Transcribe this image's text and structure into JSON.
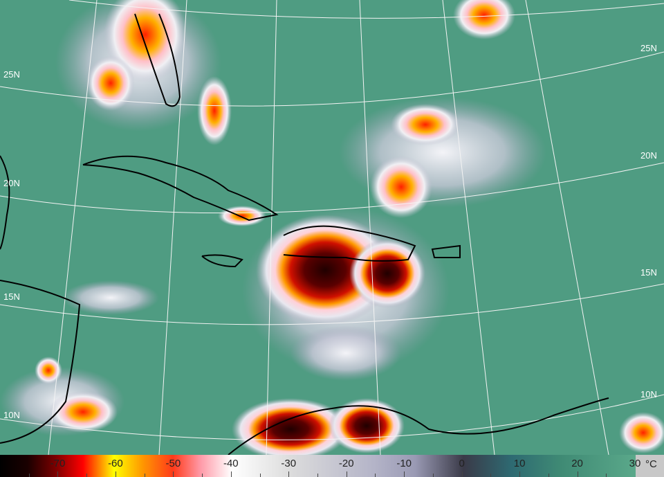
{
  "map": {
    "latitude_labels_left": [
      "25N",
      "20N",
      "15N",
      "10N"
    ],
    "latitude_labels_right": [
      "25N",
      "20N",
      "15N",
      "10N"
    ]
  },
  "colorbar": {
    "unit": "°C",
    "ticks": [
      "-70",
      "-60",
      "-50",
      "-40",
      "-30",
      "-20",
      "-10",
      "0",
      "10",
      "20",
      "30"
    ],
    "range": [
      -80,
      30
    ],
    "colors": {
      "cold": "#000000",
      "red": "#ff0000",
      "yellow": "#ffff00",
      "white": "#ffffff",
      "gray": "#9a9ab4",
      "teal": "#2e6a72",
      "green": "#5aa88a"
    }
  }
}
